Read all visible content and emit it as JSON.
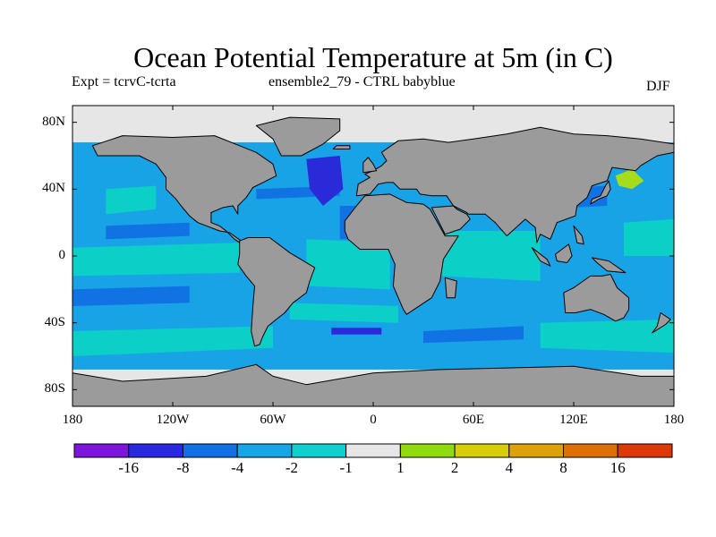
{
  "title": "Ocean Potential Temperature at 5m (in C)",
  "subtitle_left": "Expt = tcrvC-tcrta",
  "subtitle_center": "ensemble2_79 - CTRL babyblue",
  "season": "DJF",
  "map": {
    "x_ticks": [
      "180",
      "120W",
      "60W",
      "0",
      "60E",
      "120E",
      "180"
    ],
    "y_ticks": [
      "80N",
      "40N",
      "0",
      "40S",
      "80S"
    ],
    "colors": {
      "land": "#9b9b9b",
      "ice": "#e6e6e6",
      "ocean_main": "#18a3e6",
      "light_anomaly": "#0ccfc8",
      "mid_negative": "#1172e4",
      "strong_negative": "#2b2ad8",
      "positive": "#a6dc19",
      "coast": "#000000"
    }
  },
  "colorbar": {
    "labels": [
      "-16",
      "-8",
      "-4",
      "-2",
      "-1",
      "1",
      "2",
      "4",
      "8",
      "16"
    ],
    "colors": [
      "#7c16dc",
      "#2929e0",
      "#1170e4",
      "#16a6e8",
      "#10cfcf",
      "#e6e6e6",
      "#8fdb10",
      "#d6cc08",
      "#dca10b",
      "#dd6f06",
      "#dd3808"
    ]
  }
}
